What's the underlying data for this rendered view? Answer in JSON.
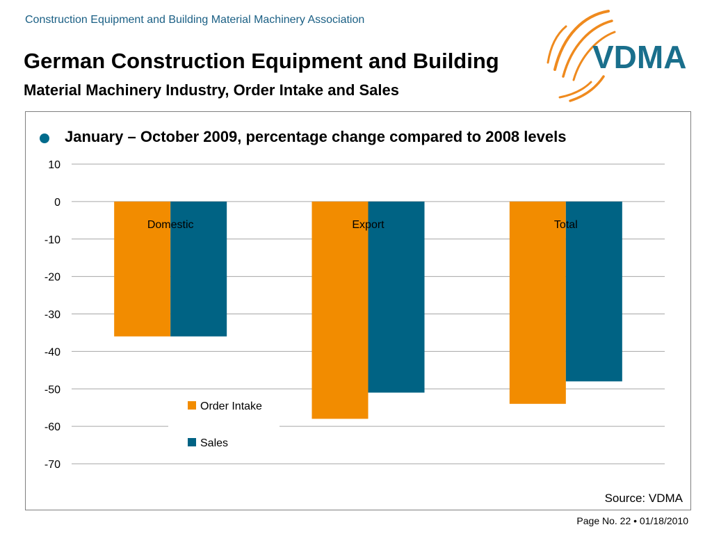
{
  "header": {
    "association": "Construction Equipment and Building Material Machinery Association",
    "title_line1": "German Construction Equipment and Building",
    "title_line2": "Material Machinery Industry, Order Intake and Sales",
    "logo_text": "VDMA"
  },
  "bullet": {
    "text": "January – October 2009, percentage change compared to 2008 levels"
  },
  "colors": {
    "order_intake": "#f28c00",
    "sales": "#006384",
    "accent": "#1a5f84",
    "logo_orange": "#ef8a1e"
  },
  "chart_data": {
    "type": "bar",
    "categories": [
      "Domestic",
      "Export",
      "Total"
    ],
    "series": [
      {
        "name": "Order Intake",
        "values": [
          -36,
          -58,
          -54
        ]
      },
      {
        "name": "Sales",
        "values": [
          -36,
          -51,
          -48
        ]
      }
    ],
    "ylim": [
      -70,
      10
    ],
    "yticks": [
      10,
      0,
      -10,
      -20,
      -30,
      -40,
      -50,
      -60,
      -70
    ],
    "grid": true,
    "legend": "bottom-center"
  },
  "footer": {
    "source": "Source: VDMA",
    "page": "Page No. 22 • 01/18/2010"
  }
}
